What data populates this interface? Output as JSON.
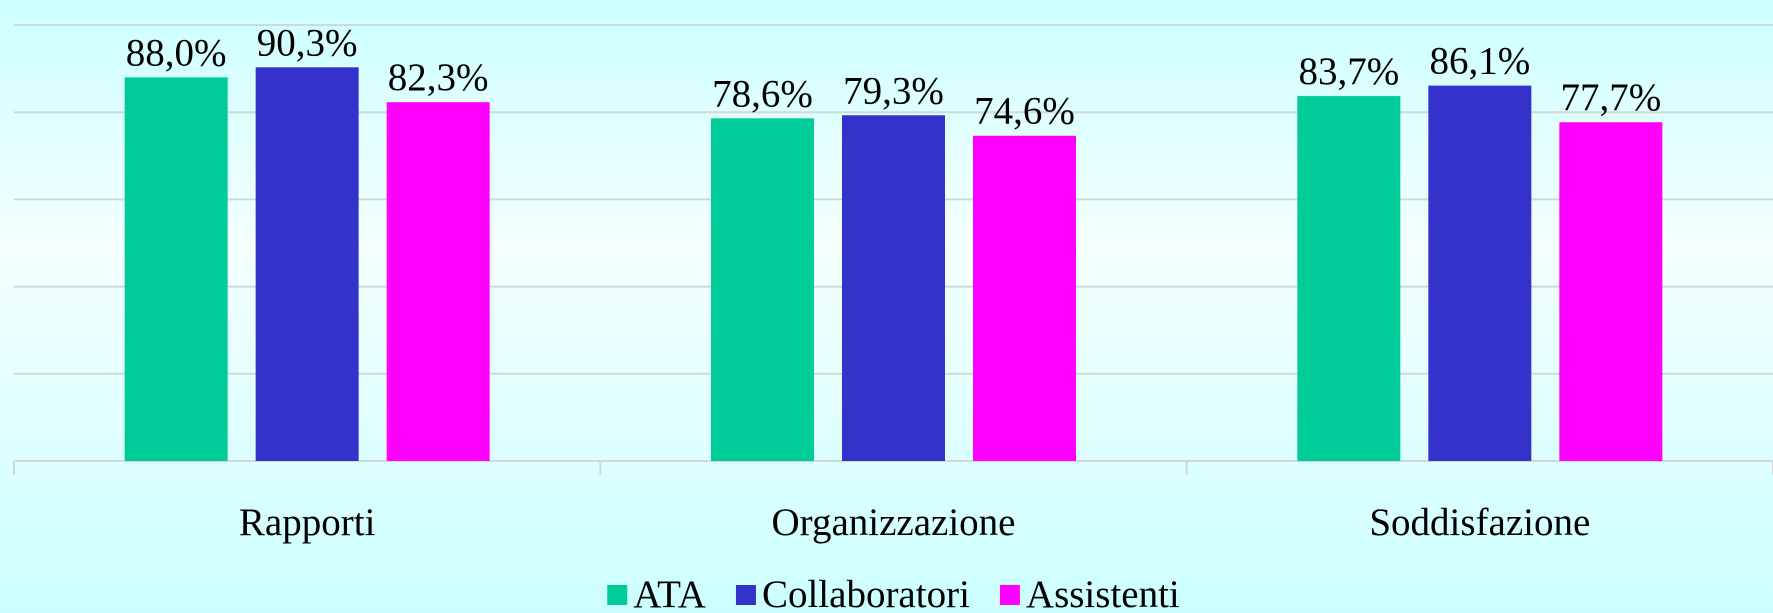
{
  "chart_data": {
    "type": "bar",
    "categories": [
      "Rapporti",
      "Organizzazione",
      "Soddisfazione"
    ],
    "series": [
      {
        "name": "ATA",
        "color": "#00cc99",
        "values": [
          88.0,
          78.6,
          83.7
        ],
        "value_labels": [
          "88,0%",
          "78,6%",
          "83,7%"
        ]
      },
      {
        "name": "Collaboratori",
        "color": "#3333cc",
        "values": [
          90.3,
          79.3,
          86.1
        ],
        "value_labels": [
          "90,3%",
          "79,3%",
          "86,1%"
        ]
      },
      {
        "name": "Assistenti",
        "color": "#ff00ff",
        "values": [
          82.3,
          74.6,
          77.7
        ],
        "value_labels": [
          "82,3%",
          "74,6%",
          "77,7%"
        ]
      }
    ],
    "ylim": [
      0,
      100
    ],
    "yticks": [
      0,
      20,
      40,
      60,
      80,
      100
    ],
    "grid": true,
    "legend": "bottom"
  }
}
